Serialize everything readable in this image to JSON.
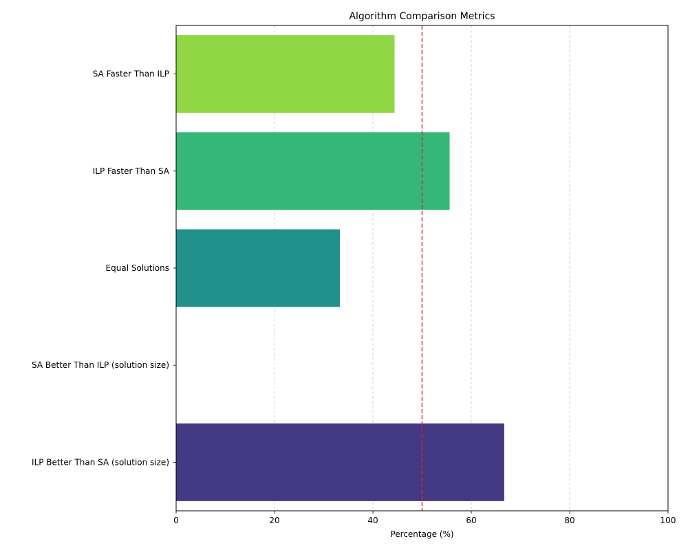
{
  "chart_data": {
    "type": "bar",
    "orientation": "horizontal",
    "title": "Algorithm Comparison Metrics",
    "xlabel": "Percentage (%)",
    "ylabel": "",
    "xlim": [
      0,
      100
    ],
    "xticks": [
      0,
      20,
      40,
      60,
      80,
      100
    ],
    "categories": [
      "SA Faster Than ILP",
      "ILP Faster Than SA",
      "Equal Solutions",
      "SA Better Than ILP (solution size)",
      "ILP Better Than SA (solution size)"
    ],
    "values": [
      44.4,
      55.6,
      33.3,
      0,
      66.7
    ],
    "colors": [
      "#8fd744",
      "#35b779",
      "#21918c",
      "#31688e",
      "#443983"
    ],
    "reference_line": {
      "value": 50,
      "color": "#d62728",
      "style": "dashed"
    },
    "grid": {
      "x": true,
      "y": false,
      "style": "dashed",
      "color": "#c8c8c8"
    },
    "legend": "none"
  }
}
